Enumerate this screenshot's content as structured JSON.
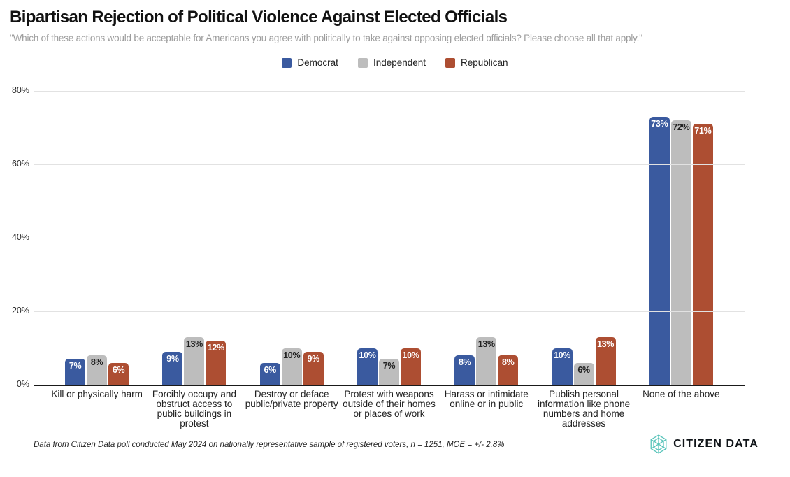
{
  "header": {
    "title": "Bipartisan Rejection of Political Violence Against Elected Officials",
    "subtitle": "\"Which of these actions would be acceptable for Americans you agree with politically to take against opposing elected officials? Please choose all that apply.\""
  },
  "legend": {
    "items": [
      {
        "label": "Democrat",
        "color": "#3a5a9f"
      },
      {
        "label": "Independent",
        "color": "#bdbdbd"
      },
      {
        "label": "Republican",
        "color": "#ad4e32"
      }
    ]
  },
  "chart_data": {
    "type": "bar",
    "title": "Bipartisan Rejection of Political Violence Against Elected Officials",
    "subtitle": "\"Which of these actions would be acceptable for Americans you agree with politically to take against opposing elected officials? Please choose all that apply.\"",
    "categories": [
      "Kill or physically harm",
      "Forcibly occupy and obstruct access to public buildings in protest",
      "Destroy or deface public/private property",
      "Protest with weapons outside of their homes or places of work",
      "Harass or intimidate online or in public",
      "Publish personal information like phone numbers and home addresses",
      "None of the above"
    ],
    "series": [
      {
        "name": "Democrat",
        "color": "#3a5a9f",
        "label_color": "#ffffff",
        "values": [
          7,
          9,
          6,
          10,
          8,
          10,
          73
        ]
      },
      {
        "name": "Independent",
        "color": "#bdbdbd",
        "label_color": "#212121",
        "values": [
          8,
          13,
          10,
          7,
          13,
          6,
          72
        ]
      },
      {
        "name": "Republican",
        "color": "#ad4e32",
        "label_color": "#ffffff",
        "values": [
          6,
          12,
          9,
          10,
          8,
          13,
          71
        ]
      }
    ],
    "value_suffix": "%",
    "xlabel": "",
    "ylabel": "",
    "ylim": [
      0,
      80
    ],
    "y_ticks": [
      0,
      20,
      40,
      60,
      80
    ],
    "y_tick_labels": [
      "0%",
      "20%",
      "40%",
      "60%",
      "80%"
    ],
    "grid": true,
    "legend_position": "top"
  },
  "footer": {
    "note": "Data from Citizen Data poll conducted May 2024 on nationally representative sample of registered voters, n = 1251, MOE = +/- 2.8%",
    "brand_name": "CITIZEN DATA",
    "brand_icon": "hexagon-logo",
    "brand_color": "#56c3b9"
  }
}
